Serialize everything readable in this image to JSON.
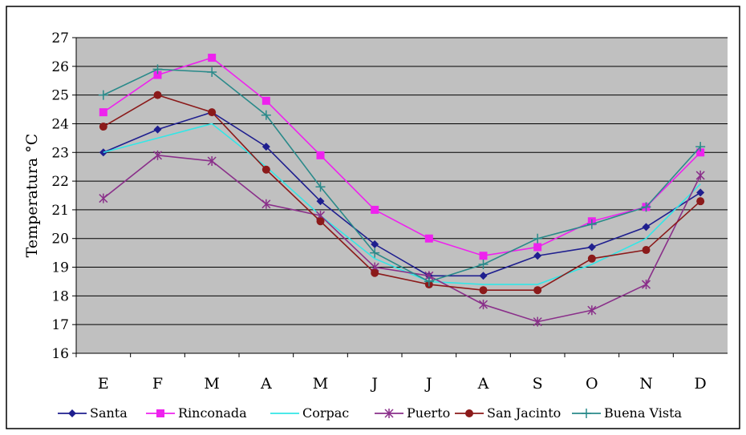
{
  "chart_data": {
    "type": "line",
    "title": "",
    "xlabel": "",
    "ylabel": "Temperatura °C",
    "categories": [
      "E",
      "F",
      "M",
      "A",
      "M",
      "J",
      "J",
      "A",
      "S",
      "O",
      "N",
      "D"
    ],
    "ylim": [
      16,
      27
    ],
    "yticks": [
      16,
      17,
      18,
      19,
      20,
      21,
      22,
      23,
      24,
      25,
      26,
      27
    ],
    "grid": true,
    "legend_position": "bottom",
    "plot_background": "#c0c0c0",
    "series": [
      {
        "name": "Santa",
        "color": "#1f1f8f",
        "marker": "diamond",
        "values": [
          23.0,
          23.8,
          24.4,
          23.2,
          21.3,
          19.8,
          18.7,
          18.7,
          19.4,
          19.7,
          20.4,
          21.6
        ]
      },
      {
        "name": "Rinconada",
        "color": "#ee22ee",
        "marker": "square",
        "values": [
          24.4,
          25.7,
          26.3,
          24.8,
          22.9,
          21.0,
          20.0,
          19.4,
          19.7,
          20.6,
          21.1,
          23.0
        ]
      },
      {
        "name": "Corpac",
        "color": "#33e6e6",
        "marker": "none",
        "values": [
          23.0,
          23.5,
          24.0,
          22.5,
          20.8,
          19.3,
          18.5,
          18.4,
          18.4,
          19.1,
          20.0,
          21.9
        ]
      },
      {
        "name": "Puerto",
        "color": "#8a2f8a",
        "marker": "star",
        "values": [
          21.4,
          22.9,
          22.7,
          21.2,
          20.8,
          19.0,
          18.7,
          17.7,
          17.1,
          17.5,
          18.4,
          22.2
        ]
      },
      {
        "name": "San Jacinto",
        "color": "#8b1a1a",
        "marker": "circle",
        "values": [
          23.9,
          25.0,
          24.4,
          22.4,
          20.6,
          18.8,
          18.4,
          18.2,
          18.2,
          19.3,
          19.6,
          21.3
        ]
      },
      {
        "name": "Buena Vista",
        "color": "#2a8a8a",
        "marker": "plus",
        "values": [
          25.0,
          25.9,
          25.8,
          24.3,
          21.8,
          19.5,
          18.5,
          19.1,
          20.0,
          20.5,
          21.1,
          23.2
        ]
      }
    ]
  }
}
